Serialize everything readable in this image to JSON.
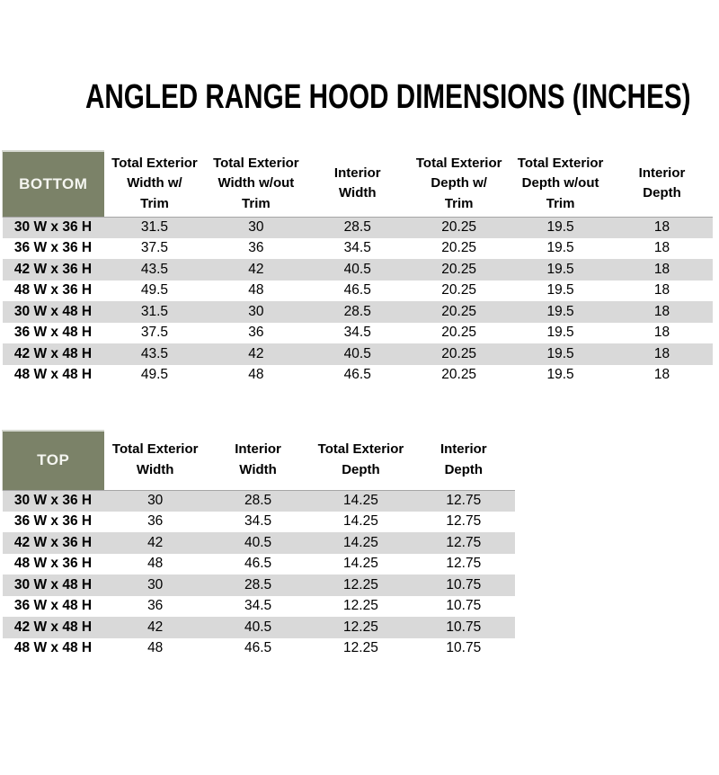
{
  "title": "ANGLED RANGE HOOD DIMENSIONS (INCHES)",
  "colors": {
    "header_green": "#7b8268",
    "stripe_gray": "#d9d9d9",
    "corner_text": "#f4f5f0",
    "body_text": "#000000"
  },
  "bottom_table": {
    "corner_label": "BOTTOM",
    "columns": [
      "Total Exterior\nWidth w/\nTrim",
      "Total Exterior\nWidth w/out\nTrim",
      "Interior\nWidth",
      "Total Exterior\nDepth w/\nTrim",
      "Total Exterior\nDepth w/out\nTrim",
      "Interior\nDepth"
    ],
    "rows": [
      {
        "label": "30 W x 36 H",
        "values": [
          "31.5",
          "30",
          "28.5",
          "20.25",
          "19.5",
          "18"
        ]
      },
      {
        "label": "36 W x 36 H",
        "values": [
          "37.5",
          "36",
          "34.5",
          "20.25",
          "19.5",
          "18"
        ]
      },
      {
        "label": "42 W x 36 H",
        "values": [
          "43.5",
          "42",
          "40.5",
          "20.25",
          "19.5",
          "18"
        ]
      },
      {
        "label": "48 W x 36 H",
        "values": [
          "49.5",
          "48",
          "46.5",
          "20.25",
          "19.5",
          "18"
        ]
      },
      {
        "label": "30 W x 48 H",
        "values": [
          "31.5",
          "30",
          "28.5",
          "20.25",
          "19.5",
          "18"
        ]
      },
      {
        "label": "36 W x 48 H",
        "values": [
          "37.5",
          "36",
          "34.5",
          "20.25",
          "19.5",
          "18"
        ]
      },
      {
        "label": "42 W x 48 H",
        "values": [
          "43.5",
          "42",
          "40.5",
          "20.25",
          "19.5",
          "18"
        ]
      },
      {
        "label": "48 W x 48 H",
        "values": [
          "49.5",
          "48",
          "46.5",
          "20.25",
          "19.5",
          "18"
        ]
      }
    ]
  },
  "top_table": {
    "corner_label": "TOP",
    "columns": [
      "Total Exterior\nWidth",
      "Interior\nWidth",
      "Total Exterior\nDepth",
      "Interior\nDepth"
    ],
    "rows": [
      {
        "label": "30 W x 36 H",
        "values": [
          "30",
          "28.5",
          "14.25",
          "12.75"
        ]
      },
      {
        "label": "36 W x 36 H",
        "values": [
          "36",
          "34.5",
          "14.25",
          "12.75"
        ]
      },
      {
        "label": "42 W x 36 H",
        "values": [
          "42",
          "40.5",
          "14.25",
          "12.75"
        ]
      },
      {
        "label": "48 W x 36 H",
        "values": [
          "48",
          "46.5",
          "14.25",
          "12.75"
        ]
      },
      {
        "label": "30 W x 48 H",
        "values": [
          "30",
          "28.5",
          "12.25",
          "10.75"
        ]
      },
      {
        "label": "36 W x 48 H",
        "values": [
          "36",
          "34.5",
          "12.25",
          "10.75"
        ]
      },
      {
        "label": "42 W x 48 H",
        "values": [
          "42",
          "40.5",
          "12.25",
          "10.75"
        ]
      },
      {
        "label": "48 W x 48 H",
        "values": [
          "48",
          "46.5",
          "12.25",
          "10.75"
        ]
      }
    ]
  }
}
